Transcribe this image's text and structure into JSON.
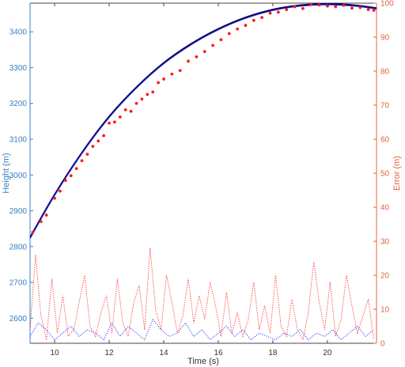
{
  "chart_data": {
    "type": "line",
    "xlabel": "Time (s)",
    "ylabel_left": "Height (m)",
    "ylabel_right": "Error (m)",
    "xlim": [
      9.1,
      21.8
    ],
    "ylim_left": [
      2530,
      3480
    ],
    "ylim_right": [
      0,
      100
    ],
    "x_ticks": [
      10,
      12,
      14,
      16,
      18,
      20
    ],
    "y_left_ticks": [
      2600,
      2700,
      2800,
      2900,
      3000,
      3100,
      3200,
      3300,
      3400
    ],
    "y_right_ticks": [
      0,
      10,
      20,
      30,
      40,
      50,
      60,
      70,
      80,
      90,
      100
    ],
    "grid": false,
    "legend": "none",
    "colors": {
      "left_axis": "#3b7fc4",
      "right_axis": "#e8603c",
      "fit_line": "#0a0a5c",
      "true_line": "#2222dd",
      "measurements": "#ff1a1a",
      "error_red": "#ff3333",
      "error_blue": "#3333ff"
    },
    "series": [
      {
        "axis": "left",
        "style": "solid",
        "trajectory_peak": {
          "x": 20.0,
          "y": 3478
        },
        "x": [
          9.1,
          10.0,
          11.0,
          12.0,
          13.0,
          14.0,
          15.0,
          16.0,
          17.0,
          18.0,
          19.0,
          20.0,
          21.0,
          21.8
        ],
        "y": [
          2825,
          2945,
          3062,
          3163,
          3245,
          3313,
          3366,
          3408,
          3440,
          3462,
          3474,
          3478,
          3474,
          3466
        ]
      },
      {
        "axis": "left",
        "style": "points",
        "x": [
          9.2,
          9.5,
          9.7,
          10.0,
          10.2,
          10.4,
          10.6,
          10.8,
          11.0,
          11.2,
          11.4,
          11.6,
          11.8,
          12.0,
          12.2,
          12.4,
          12.6,
          12.8,
          13.0,
          13.2,
          13.4,
          13.6,
          13.8,
          14.0,
          14.3,
          14.6,
          14.9,
          15.2,
          15.5,
          15.8,
          16.1,
          16.4,
          16.7,
          17.0,
          17.3,
          17.6,
          17.9,
          18.2,
          18.5,
          18.8,
          19.1,
          19.4,
          19.7,
          20.0,
          20.3,
          20.6,
          20.9,
          21.2,
          21.5,
          21.7
        ],
        "y": [
          2840,
          2870,
          2888,
          2935,
          2955,
          2985,
          2998,
          3018,
          3040,
          3058,
          3080,
          3095,
          3110,
          3145,
          3148,
          3162,
          3182,
          3178,
          3200,
          3212,
          3225,
          3232,
          3258,
          3268,
          3282,
          3292,
          3318,
          3330,
          3345,
          3362,
          3378,
          3395,
          3408,
          3418,
          3432,
          3440,
          3452,
          3455,
          3462,
          3470,
          3465,
          3476,
          3475,
          3472,
          3470,
          3474,
          3466,
          3468,
          3462,
          3460
        ]
      },
      {
        "axis": "right",
        "style": "dotted",
        "x": [
          9.1,
          9.3,
          9.5,
          9.7,
          9.9,
          10.1,
          10.3,
          10.5,
          10.7,
          10.9,
          11.1,
          11.3,
          11.5,
          11.7,
          11.9,
          12.1,
          12.3,
          12.5,
          12.7,
          12.9,
          13.1,
          13.3,
          13.5,
          13.7,
          13.9,
          14.1,
          14.3,
          14.5,
          14.7,
          14.9,
          15.1,
          15.3,
          15.5,
          15.7,
          15.9,
          16.1,
          16.3,
          16.5,
          16.7,
          16.9,
          17.1,
          17.3,
          17.5,
          17.7,
          17.9,
          18.1,
          18.3,
          18.5,
          18.7,
          18.9,
          19.1,
          19.3,
          19.5,
          19.7,
          19.9,
          20.1,
          20.3,
          20.5,
          20.7,
          20.9,
          21.1,
          21.3,
          21.5,
          21.7
        ],
        "y": [
          4,
          26,
          8,
          1,
          19,
          3,
          14,
          2,
          4,
          12,
          20,
          5,
          2,
          9,
          14,
          3,
          19,
          6,
          2,
          12,
          17,
          4,
          28,
          10,
          4,
          20,
          12,
          3,
          8,
          19,
          6,
          14,
          7,
          18,
          11,
          2,
          15,
          3,
          9,
          2,
          7,
          18,
          4,
          11,
          3,
          20,
          5,
          2,
          13,
          4,
          1,
          9,
          24,
          12,
          4,
          18,
          2,
          7,
          20,
          11,
          3,
          8,
          13,
          1
        ]
      },
      {
        "axis": "right",
        "style": "dotted",
        "x": [
          9.1,
          9.4,
          9.7,
          10.0,
          10.3,
          10.6,
          10.9,
          11.2,
          11.5,
          11.8,
          12.1,
          12.4,
          12.7,
          13.0,
          13.3,
          13.6,
          13.9,
          14.2,
          14.5,
          14.8,
          15.1,
          15.4,
          15.7,
          16.0,
          16.3,
          16.6,
          16.9,
          17.2,
          17.5,
          17.8,
          18.1,
          18.4,
          18.7,
          19.0,
          19.3,
          19.6,
          19.9,
          20.2,
          20.5,
          20.8,
          21.1,
          21.4,
          21.7
        ],
        "y": [
          2,
          6,
          4,
          1,
          3,
          5,
          2,
          4,
          3,
          1,
          6,
          2,
          5,
          3,
          1,
          7,
          4,
          2,
          3,
          6,
          2,
          4,
          1,
          3,
          5,
          2,
          4,
          1,
          3,
          2,
          1,
          3,
          2,
          4,
          1,
          3,
          2,
          4,
          1,
          3,
          5,
          2,
          4
        ]
      }
    ]
  }
}
